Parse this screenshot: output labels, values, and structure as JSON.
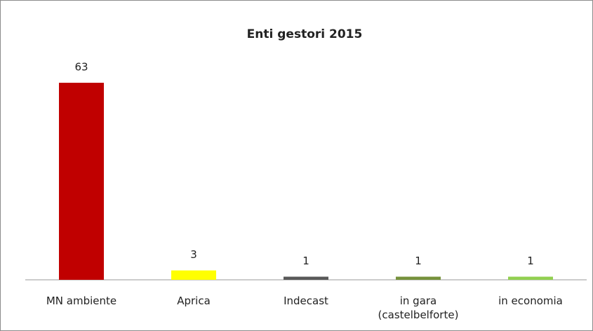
{
  "chart_data": {
    "type": "bar",
    "title": "Enti gestori 2015",
    "categories": [
      "MN ambiente",
      "Aprica",
      "Indecast",
      "in gara (castelbelforte)",
      "in economia"
    ],
    "values": [
      63,
      3,
      1,
      1,
      1
    ],
    "colors": [
      "#c00000",
      "#ffff00",
      "#595959",
      "#76923c",
      "#92d050"
    ]
  }
}
